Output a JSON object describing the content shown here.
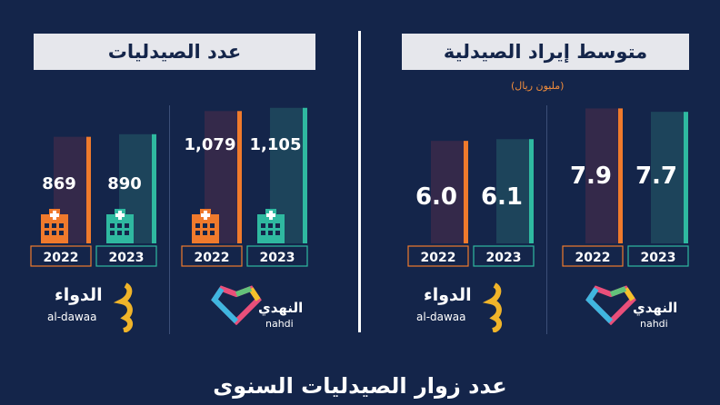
{
  "titles": {
    "pharmacy_count": "عدد الصيدليات",
    "avg_revenue": "متوسط إيراد الصيدلية",
    "unit": "(مليون ريال)",
    "bottom": "عدد زوار الصيدليات السنوى"
  },
  "logos": {
    "aldawaa_ar": "الدواء",
    "aldawaa_en": "al-dawaa",
    "nahdi_ar": "النهدي",
    "nahdi_en": "nahdi"
  },
  "colors": {
    "orange": "#f07a2c",
    "teal": "#2fb9a0",
    "bg": "#14254a"
  },
  "chart_data": [
    {
      "type": "bar",
      "title": "عدد الصيدليات",
      "groups": [
        {
          "company": "al-dawaa",
          "categories": [
            "2022",
            "2023"
          ],
          "values": [
            869,
            890
          ]
        },
        {
          "company": "nahdi",
          "categories": [
            "2022",
            "2023"
          ],
          "values": [
            1079,
            1105
          ]
        }
      ],
      "value_labels": [
        "869",
        "890",
        "1,079",
        "1,105"
      ]
    },
    {
      "type": "bar",
      "title": "متوسط إيراد الصيدلية",
      "unit": "(مليون ريال)",
      "groups": [
        {
          "company": "al-dawaa",
          "categories": [
            "2022",
            "2023"
          ],
          "values": [
            6.0,
            6.1
          ]
        },
        {
          "company": "nahdi",
          "categories": [
            "2022",
            "2023"
          ],
          "values": [
            7.9,
            7.7
          ]
        }
      ],
      "value_labels": [
        "6.0",
        "6.1",
        "7.9",
        "7.7"
      ]
    }
  ]
}
